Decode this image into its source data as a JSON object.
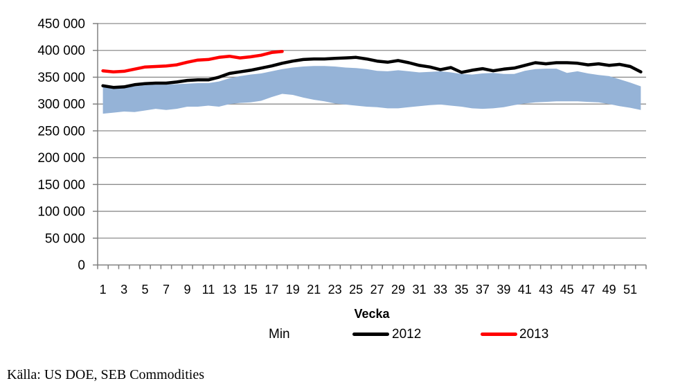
{
  "chart_data": {
    "type": "line",
    "title": "",
    "xlabel": "Vecka",
    "ylabel": "",
    "ylim": [
      0,
      450000
    ],
    "ytick_step": 50000,
    "ytick_labels": [
      "0",
      "50 000",
      "100 000",
      "150 000",
      "200 000",
      "250 000",
      "300 000",
      "350 000",
      "400 000",
      "450 000"
    ],
    "x": [
      1,
      2,
      3,
      4,
      5,
      6,
      7,
      8,
      9,
      10,
      11,
      12,
      13,
      14,
      15,
      16,
      17,
      18,
      19,
      20,
      21,
      22,
      23,
      24,
      25,
      26,
      27,
      28,
      29,
      30,
      31,
      32,
      33,
      34,
      35,
      36,
      37,
      38,
      39,
      40,
      41,
      42,
      43,
      44,
      45,
      46,
      47,
      48,
      49,
      50,
      51,
      52
    ],
    "xtick_labels": [
      "1",
      "3",
      "5",
      "7",
      "9",
      "11",
      "13",
      "15",
      "17",
      "19",
      "21",
      "23",
      "25",
      "27",
      "29",
      "31",
      "33",
      "35",
      "37",
      "39",
      "41",
      "43",
      "45",
      "47",
      "49",
      "51"
    ],
    "grid": true,
    "legend_position": "bottom",
    "series": [
      {
        "name": "Min",
        "type": "band",
        "color": "#95B3D7",
        "upper": [
          332000,
          330000,
          331000,
          333000,
          335000,
          336000,
          336000,
          337000,
          338000,
          339000,
          339000,
          342000,
          348000,
          352000,
          355000,
          357000,
          361000,
          365000,
          368000,
          370000,
          371000,
          371000,
          370000,
          368000,
          367000,
          365000,
          362000,
          361000,
          363000,
          361000,
          359000,
          360000,
          361000,
          359000,
          356000,
          355000,
          357000,
          358000,
          356000,
          356000,
          362000,
          365000,
          366000,
          366000,
          358000,
          361000,
          357000,
          354000,
          352000,
          346000,
          340000,
          333000
        ],
        "lower": [
          282000,
          284000,
          286000,
          285000,
          288000,
          291000,
          289000,
          291000,
          295000,
          295000,
          297000,
          295000,
          300000,
          302000,
          303000,
          306000,
          313000,
          319000,
          317000,
          312000,
          308000,
          305000,
          301000,
          299000,
          297000,
          295000,
          294000,
          292000,
          292000,
          294000,
          296000,
          298000,
          299000,
          297000,
          295000,
          292000,
          291000,
          292000,
          294000,
          298000,
          301000,
          303000,
          304000,
          305000,
          305000,
          305000,
          304000,
          303000,
          300000,
          296000,
          293000,
          289000
        ]
      },
      {
        "name": "2012",
        "type": "line",
        "color": "#000000",
        "values": [
          334000,
          331000,
          332000,
          336000,
          338000,
          339000,
          339000,
          341000,
          344000,
          345000,
          345000,
          350000,
          357000,
          360000,
          363000,
          367000,
          371000,
          376000,
          380000,
          383000,
          384000,
          384000,
          385000,
          386000,
          387000,
          384000,
          380000,
          378000,
          381000,
          377000,
          372000,
          369000,
          364000,
          368000,
          359000,
          363000,
          366000,
          362000,
          365000,
          367000,
          372000,
          377000,
          375000,
          377000,
          377000,
          376000,
          373000,
          375000,
          372000,
          374000,
          370000,
          360000
        ]
      },
      {
        "name": "2013",
        "type": "line",
        "color": "#FF0000",
        "values": [
          362000,
          360000,
          361000,
          365000,
          369000,
          370000,
          371000,
          373000,
          378000,
          382000,
          383000,
          387000,
          389000,
          386000,
          388000,
          391000,
          396000,
          398000
        ]
      }
    ]
  },
  "source": "Källa: US DOE, SEB Commodities",
  "colors": {
    "gridline": "#8C8C8C",
    "axis": "#808080",
    "text": "#000000"
  }
}
